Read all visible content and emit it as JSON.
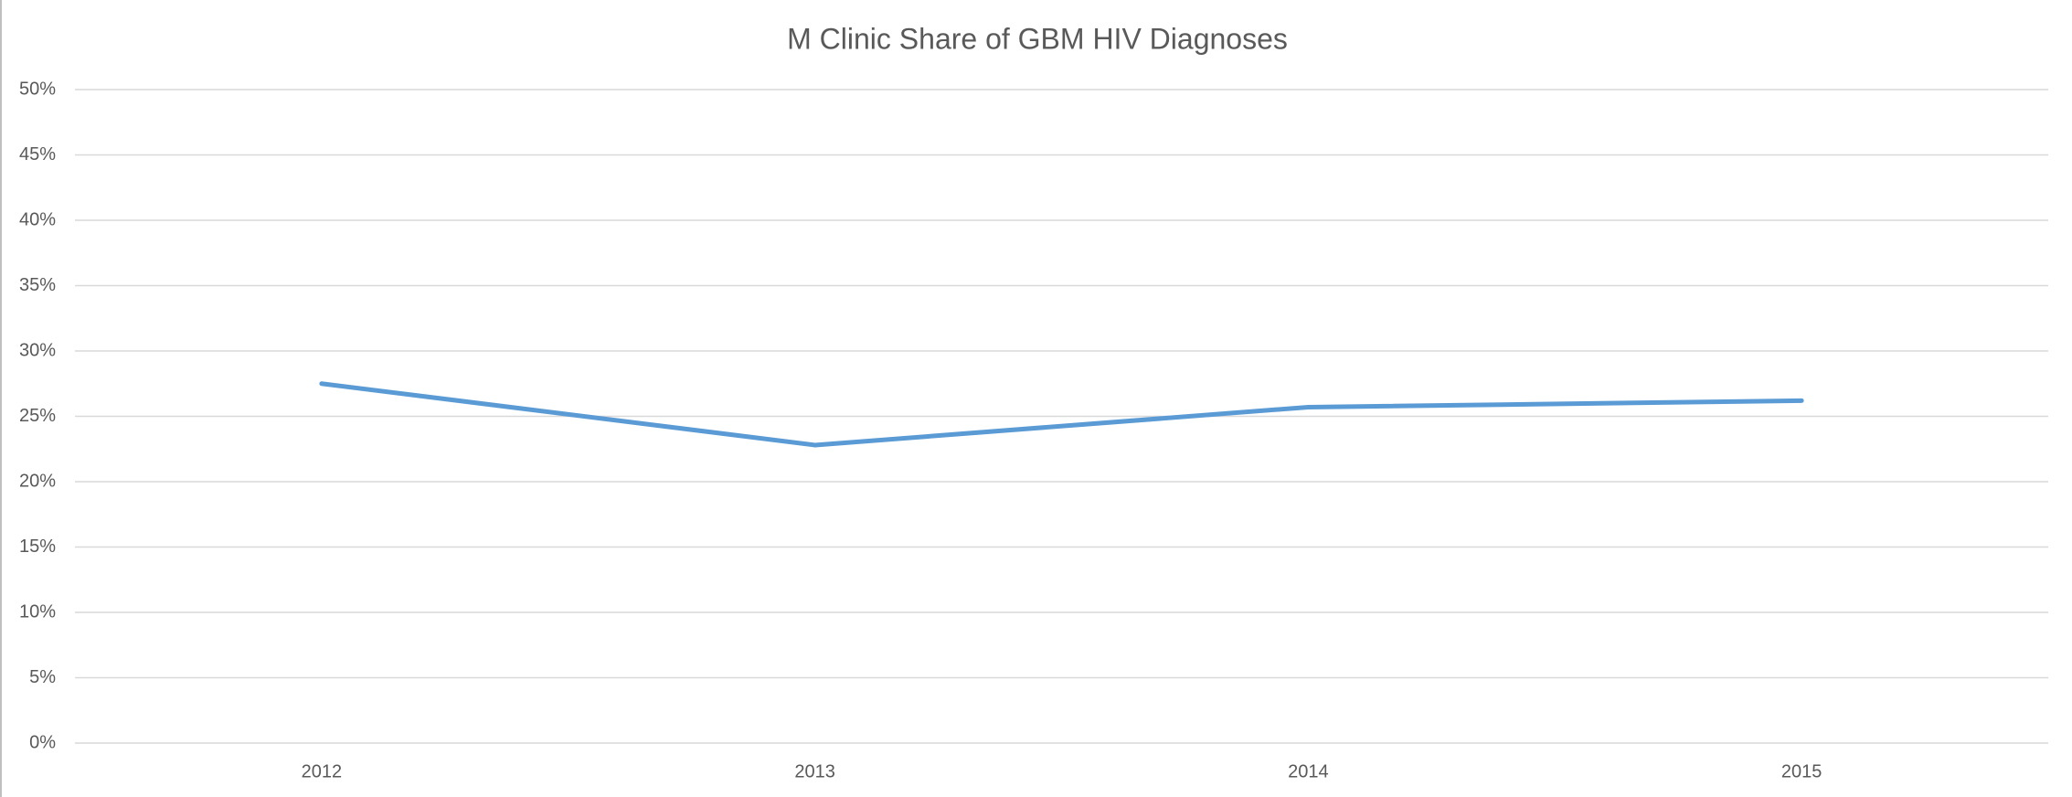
{
  "chart_data": {
    "type": "line",
    "title": "M Clinic Share of GBM HIV Diagnoses",
    "categories": [
      "2012",
      "2013",
      "2014",
      "2015"
    ],
    "series": [
      {
        "name": "M Clinic Share",
        "color": "#5b9bd5",
        "values": [
          27.5,
          22.8,
          25.7,
          26.2
        ]
      }
    ],
    "ylim": [
      0,
      50
    ],
    "yticks": [
      {
        "value": 0,
        "label": "0%"
      },
      {
        "value": 5,
        "label": "5%"
      },
      {
        "value": 10,
        "label": "10%"
      },
      {
        "value": 15,
        "label": "15%"
      },
      {
        "value": 20,
        "label": "20%"
      },
      {
        "value": 25,
        "label": "25%"
      },
      {
        "value": 30,
        "label": "30%"
      },
      {
        "value": 35,
        "label": "35%"
      },
      {
        "value": 40,
        "label": "40%"
      },
      {
        "value": 45,
        "label": "45%"
      },
      {
        "value": 50,
        "label": "50%"
      }
    ],
    "grid": true
  }
}
